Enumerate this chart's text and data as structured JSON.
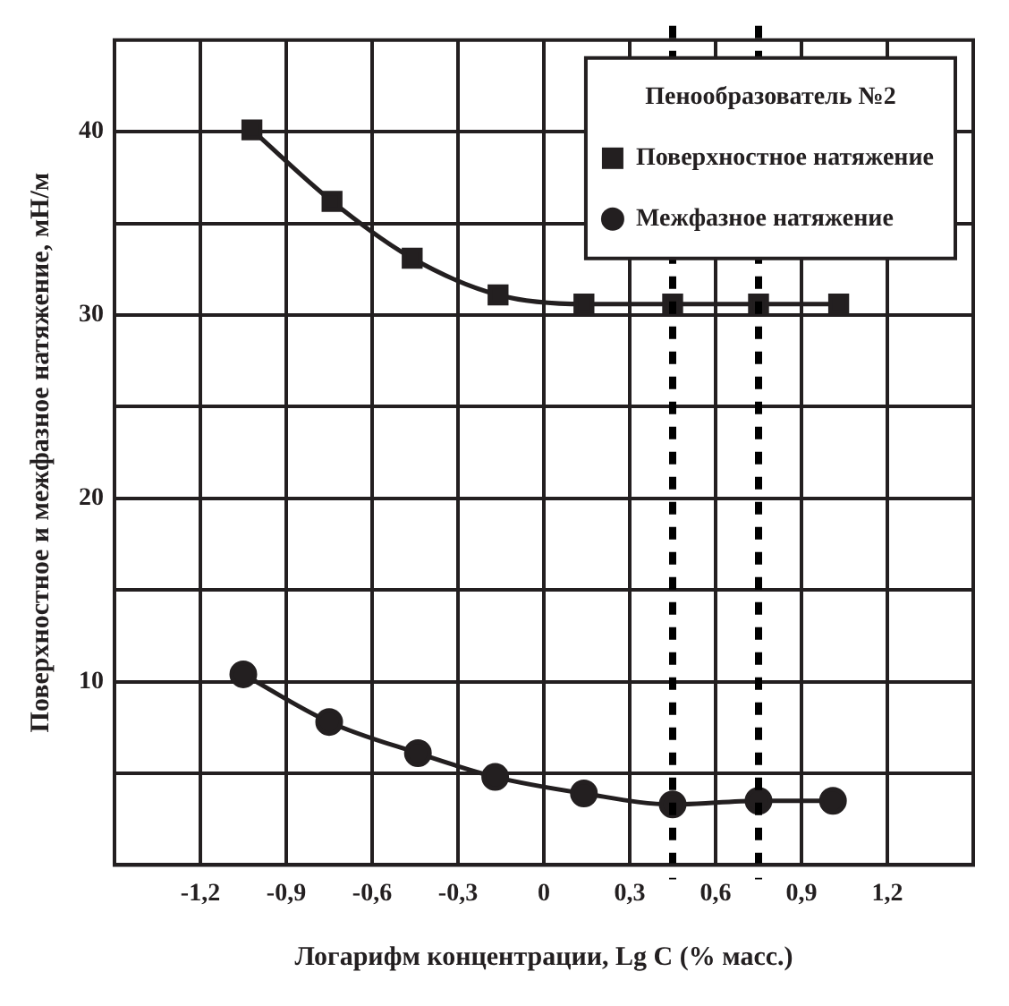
{
  "chart_data": {
    "type": "line",
    "xlabel": "Логарифм концентрации, Lg C (% масс.)",
    "ylabel": "Поверхностное и межфазное натяжение, мН/м",
    "legend_title": "Пенообразователь №2",
    "legend": "top right",
    "grid": true,
    "line_style": "solid",
    "xlim": [
      -1.5,
      1.5
    ],
    "ylim": [
      0,
      45
    ],
    "xticks": [
      {
        "value": -1.2,
        "label": "-1,2"
      },
      {
        "value": -0.9,
        "label": "-0,9"
      },
      {
        "value": -0.6,
        "label": "-0,6"
      },
      {
        "value": -0.3,
        "label": "-0,3"
      },
      0,
      {
        "value": 0.3,
        "label": "0,3"
      },
      {
        "value": 0.6,
        "label": "0,6"
      },
      {
        "value": 0.9,
        "label": "0,9"
      },
      {
        "value": 1.2,
        "label": "1,2"
      }
    ],
    "yticks": [
      {
        "value": 0,
        "label": null
      },
      {
        "value": 5,
        "label": null
      },
      10,
      {
        "value": 15,
        "label": null
      },
      20,
      {
        "value": 25,
        "label": null
      },
      30,
      {
        "value": 35,
        "label": null
      },
      40
    ],
    "ref_lines": [
      {
        "axis": "x",
        "value": 0.45,
        "line_style": "dotted",
        "color": "#000000"
      },
      {
        "axis": "x",
        "value": 0.75,
        "line_style": "dotted",
        "color": "#000000"
      }
    ],
    "series": [
      {
        "name": "Поверхностное натяжение",
        "color": "#231f20",
        "marker": "square",
        "x": [
          -1.02,
          -0.74,
          -0.46,
          -0.16,
          0.14,
          0.45,
          0.75,
          1.03
        ],
        "values": [
          40.1,
          36.2,
          33.1,
          31.1,
          30.6,
          30.6,
          30.6,
          30.6
        ]
      },
      {
        "name": "Межфазное натяжение",
        "color": "#231f20",
        "marker": "circle",
        "x": [
          -1.05,
          -0.75,
          -0.44,
          -0.17,
          0.14,
          0.45,
          0.75,
          1.01
        ],
        "values": [
          10.4,
          7.8,
          6.1,
          4.8,
          3.9,
          3.3,
          3.5,
          3.5
        ]
      }
    ]
  }
}
